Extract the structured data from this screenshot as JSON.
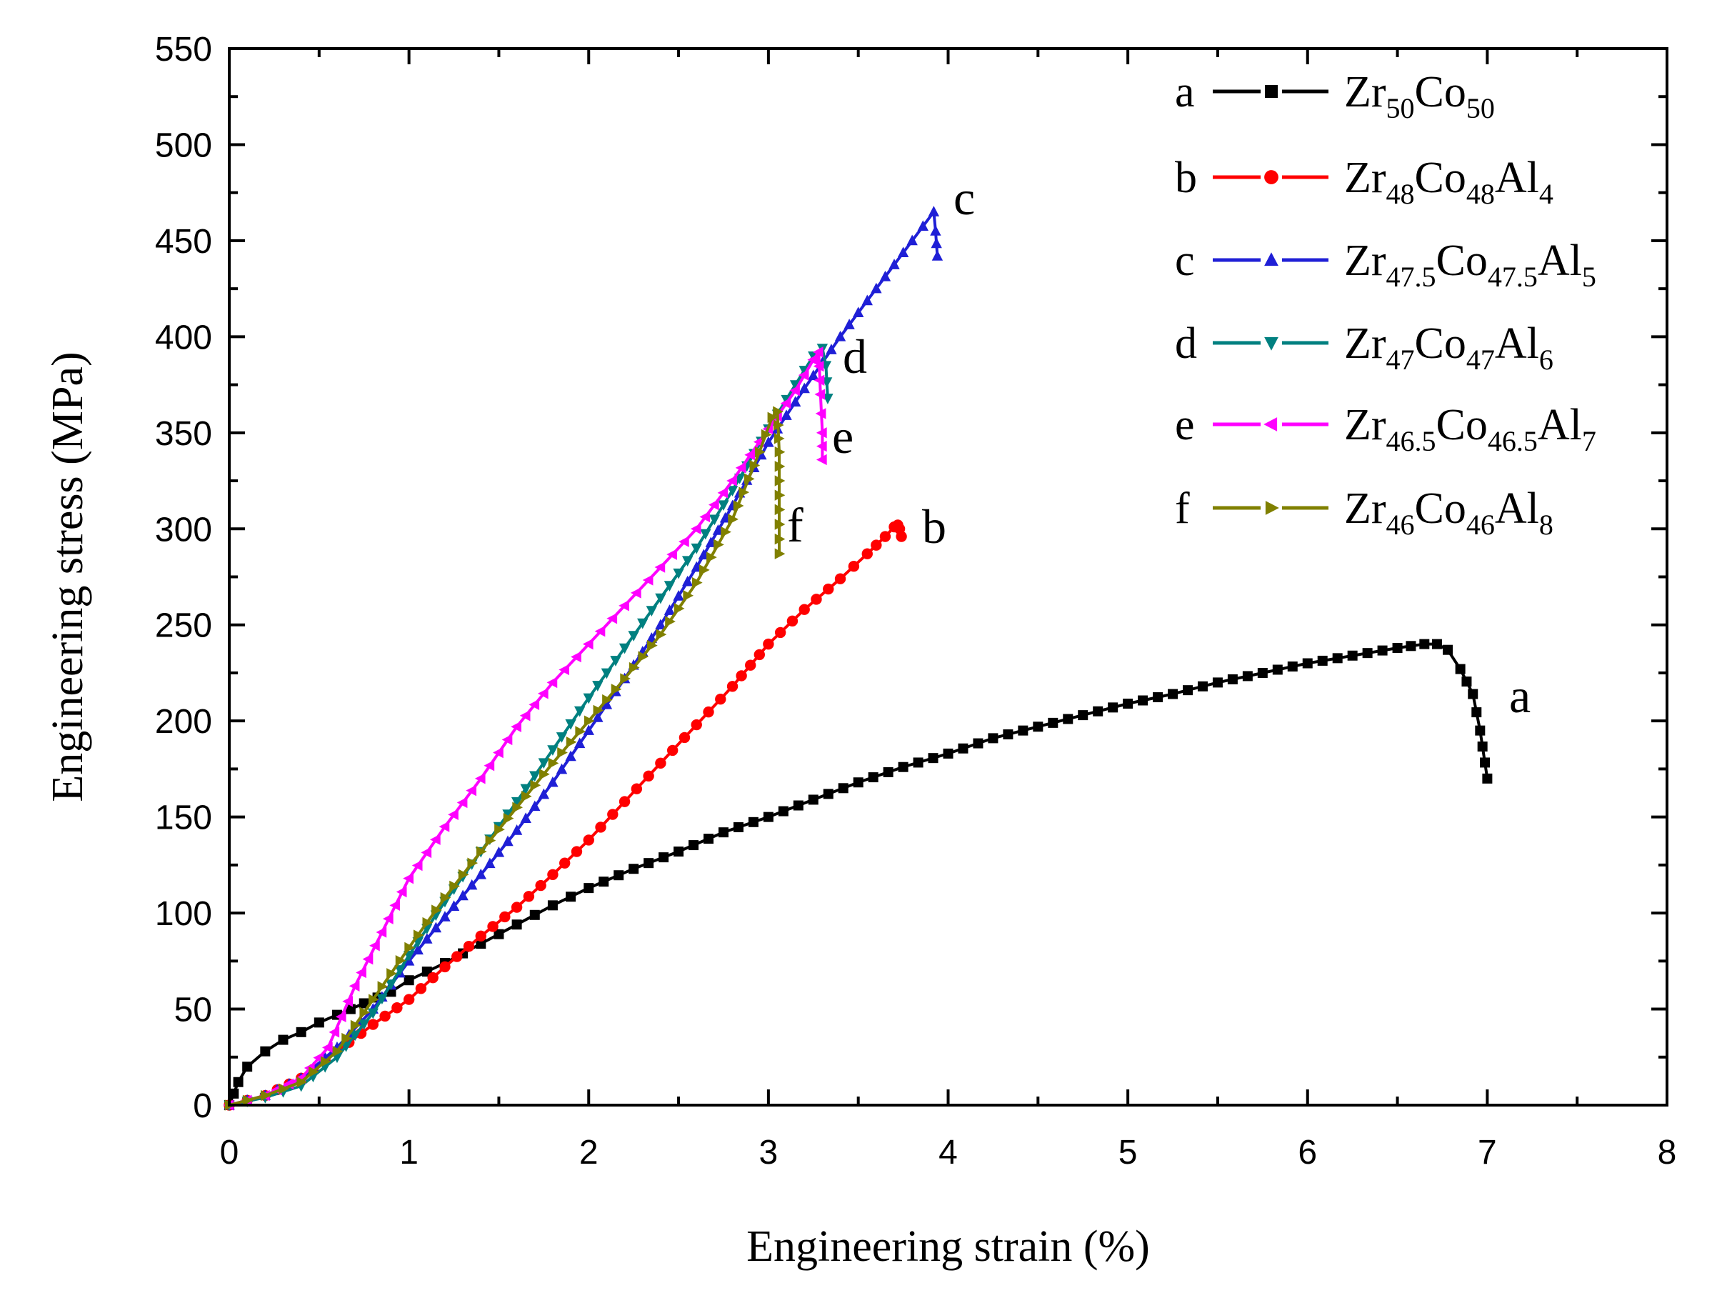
{
  "chart_data": {
    "type": "line",
    "title": "",
    "xlabel": "Engineering strain (%)",
    "ylabel": "Engineering stress (MPa)",
    "xlim": [
      0,
      8
    ],
    "ylim": [
      0,
      550
    ],
    "x_ticks": [
      0,
      1,
      2,
      3,
      4,
      5,
      6,
      7,
      8
    ],
    "y_ticks": [
      0,
      50,
      100,
      150,
      200,
      250,
      300,
      350,
      400,
      450,
      500,
      550
    ],
    "grid": false,
    "legend_position": "top-right",
    "series": [
      {
        "key": "a",
        "name": "Zr50Co50",
        "color": "#000000",
        "marker": "square",
        "legend_parts": [
          [
            "Zr",
            ""
          ],
          [
            "50",
            "sub"
          ],
          [
            "Co",
            ""
          ],
          [
            "50",
            "sub"
          ]
        ],
        "end_label": "a",
        "points": [
          [
            0,
            0
          ],
          [
            0.05,
            12
          ],
          [
            0.1,
            20
          ],
          [
            0.2,
            28
          ],
          [
            0.3,
            34
          ],
          [
            0.4,
            38
          ],
          [
            0.5,
            43
          ],
          [
            0.6,
            47
          ],
          [
            0.75,
            53
          ],
          [
            0.9,
            59
          ],
          [
            1.0,
            65
          ],
          [
            1.2,
            74
          ],
          [
            1.4,
            84
          ],
          [
            1.6,
            94
          ],
          [
            1.8,
            104
          ],
          [
            2.0,
            113
          ],
          [
            2.25,
            123
          ],
          [
            2.5,
            132
          ],
          [
            2.75,
            142
          ],
          [
            3.0,
            150
          ],
          [
            3.25,
            159
          ],
          [
            3.5,
            168
          ],
          [
            3.75,
            176
          ],
          [
            4.0,
            183
          ],
          [
            4.25,
            191
          ],
          [
            4.5,
            197
          ],
          [
            4.75,
            203
          ],
          [
            5.0,
            209
          ],
          [
            5.25,
            214
          ],
          [
            5.5,
            220
          ],
          [
            5.75,
            225
          ],
          [
            6.0,
            230
          ],
          [
            6.25,
            234
          ],
          [
            6.5,
            238
          ],
          [
            6.65,
            240
          ],
          [
            6.72,
            240
          ],
          [
            6.78,
            237
          ],
          [
            6.85,
            227
          ],
          [
            6.92,
            214
          ],
          [
            6.96,
            195
          ],
          [
            7.0,
            170
          ]
        ]
      },
      {
        "key": "b",
        "name": "Zr48Co48Al4",
        "color": "#ff0000",
        "marker": "circle",
        "legend_parts": [
          [
            "Zr",
            ""
          ],
          [
            "48",
            "sub"
          ],
          [
            "Co",
            ""
          ],
          [
            "48",
            "sub"
          ],
          [
            "Al",
            ""
          ],
          [
            "4",
            "sub"
          ]
        ],
        "end_label": "b",
        "points": [
          [
            0,
            0
          ],
          [
            0.2,
            5
          ],
          [
            0.4,
            14
          ],
          [
            0.6,
            28
          ],
          [
            0.8,
            42
          ],
          [
            1.0,
            55
          ],
          [
            1.2,
            72
          ],
          [
            1.4,
            88
          ],
          [
            1.6,
            103
          ],
          [
            1.8,
            120
          ],
          [
            2.0,
            138
          ],
          [
            2.2,
            158
          ],
          [
            2.4,
            178
          ],
          [
            2.6,
            198
          ],
          [
            2.8,
            218
          ],
          [
            3.0,
            240
          ],
          [
            3.2,
            258
          ],
          [
            3.4,
            274
          ],
          [
            3.55,
            287
          ],
          [
            3.65,
            296
          ],
          [
            3.7,
            301
          ],
          [
            3.72,
            302
          ],
          [
            3.73,
            300
          ],
          [
            3.74,
            296
          ]
        ]
      },
      {
        "key": "c",
        "name": "Zr47.5Co47.5Al5",
        "color": "#1f1fd6",
        "marker": "triangle-up",
        "legend_parts": [
          [
            "Zr",
            ""
          ],
          [
            "47.5",
            "sub"
          ],
          [
            "Co",
            ""
          ],
          [
            "47.5",
            "sub"
          ],
          [
            "Al",
            ""
          ],
          [
            "5",
            "sub"
          ]
        ],
        "end_label": "c",
        "points": [
          [
            0,
            0
          ],
          [
            0.2,
            5
          ],
          [
            0.4,
            14
          ],
          [
            0.6,
            30
          ],
          [
            0.8,
            50
          ],
          [
            1.0,
            75
          ],
          [
            1.2,
            98
          ],
          [
            1.4,
            120
          ],
          [
            1.6,
            143
          ],
          [
            1.8,
            168
          ],
          [
            2.0,
            195
          ],
          [
            2.2,
            222
          ],
          [
            2.4,
            250
          ],
          [
            2.6,
            280
          ],
          [
            2.8,
            312
          ],
          [
            3.0,
            345
          ],
          [
            3.2,
            373
          ],
          [
            3.4,
            400
          ],
          [
            3.6,
            425
          ],
          [
            3.8,
            450
          ],
          [
            3.92,
            465
          ],
          [
            3.93,
            455
          ],
          [
            3.94,
            442
          ]
        ]
      },
      {
        "key": "d",
        "name": "Zr47Co47Al6",
        "color": "#008080",
        "marker": "triangle-down",
        "legend_parts": [
          [
            "Zr",
            ""
          ],
          [
            "47",
            "sub"
          ],
          [
            "Co",
            ""
          ],
          [
            "47",
            "sub"
          ],
          [
            "Al",
            ""
          ],
          [
            "6",
            "sub"
          ]
        ],
        "end_label": "d",
        "points": [
          [
            0,
            0
          ],
          [
            0.2,
            4
          ],
          [
            0.4,
            10
          ],
          [
            0.6,
            25
          ],
          [
            0.8,
            48
          ],
          [
            1.0,
            78
          ],
          [
            1.2,
            106
          ],
          [
            1.4,
            132
          ],
          [
            1.6,
            158
          ],
          [
            1.8,
            185
          ],
          [
            2.0,
            212
          ],
          [
            2.2,
            238
          ],
          [
            2.4,
            264
          ],
          [
            2.6,
            290
          ],
          [
            2.8,
            320
          ],
          [
            3.0,
            352
          ],
          [
            3.15,
            375
          ],
          [
            3.25,
            390
          ],
          [
            3.3,
            394
          ],
          [
            3.32,
            385
          ],
          [
            3.33,
            368
          ]
        ]
      },
      {
        "key": "e",
        "name": "Zr46.5Co46.5Al7",
        "color": "#ff00ff",
        "marker": "triangle-left",
        "legend_parts": [
          [
            "Zr",
            ""
          ],
          [
            "46.5",
            "sub"
          ],
          [
            "Co",
            ""
          ],
          [
            "46.5",
            "sub"
          ],
          [
            "Al",
            ""
          ],
          [
            "7",
            "sub"
          ]
        ],
        "end_label": "e",
        "points": [
          [
            0,
            0
          ],
          [
            0.2,
            5
          ],
          [
            0.4,
            14
          ],
          [
            0.55,
            30
          ],
          [
            0.7,
            62
          ],
          [
            0.85,
            90
          ],
          [
            1.0,
            118
          ],
          [
            1.2,
            145
          ],
          [
            1.4,
            170
          ],
          [
            1.6,
            197
          ],
          [
            1.8,
            220
          ],
          [
            2.0,
            240
          ],
          [
            2.2,
            260
          ],
          [
            2.4,
            280
          ],
          [
            2.6,
            300
          ],
          [
            2.8,
            325
          ],
          [
            3.0,
            352
          ],
          [
            3.15,
            372
          ],
          [
            3.25,
            388
          ],
          [
            3.28,
            392
          ],
          [
            3.29,
            370
          ],
          [
            3.3,
            350
          ],
          [
            3.3,
            336
          ]
        ]
      },
      {
        "key": "f",
        "name": "Zr46Co46Al8",
        "color": "#808000",
        "marker": "triangle-right",
        "legend_parts": [
          [
            "Zr",
            ""
          ],
          [
            "46",
            "sub"
          ],
          [
            "Co",
            ""
          ],
          [
            "46",
            "sub"
          ],
          [
            "Al",
            ""
          ],
          [
            "8",
            "sub"
          ]
        ],
        "end_label": "f",
        "points": [
          [
            0,
            0
          ],
          [
            0.2,
            5
          ],
          [
            0.4,
            12
          ],
          [
            0.6,
            28
          ],
          [
            0.8,
            55
          ],
          [
            1.0,
            82
          ],
          [
            1.2,
            108
          ],
          [
            1.4,
            132
          ],
          [
            1.6,
            155
          ],
          [
            1.8,
            178
          ],
          [
            2.0,
            200
          ],
          [
            2.2,
            222
          ],
          [
            2.4,
            245
          ],
          [
            2.6,
            272
          ],
          [
            2.8,
            305
          ],
          [
            2.95,
            340
          ],
          [
            3.02,
            358
          ],
          [
            3.05,
            361
          ],
          [
            3.06,
            340
          ],
          [
            3.06,
            310
          ],
          [
            3.06,
            287
          ]
        ]
      }
    ]
  }
}
